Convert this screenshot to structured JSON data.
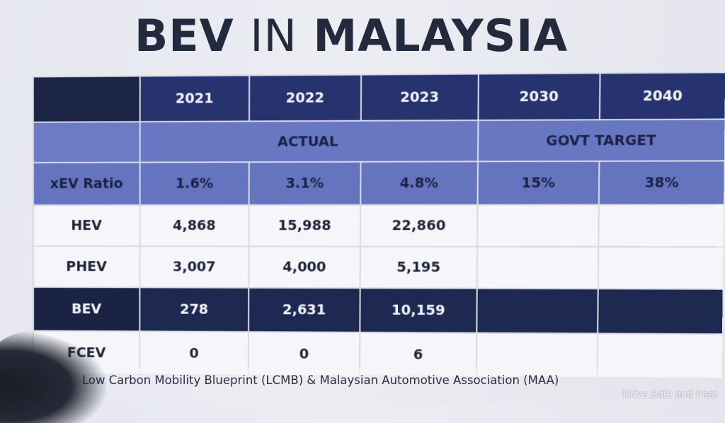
{
  "title": {
    "part1": "BEV",
    "part2": "IN",
    "part3": "MALAYSIA"
  },
  "table": {
    "years": [
      "2021",
      "2022",
      "2023",
      "2030",
      "2040"
    ],
    "actual_label": "ACTUAL",
    "target_label": "GOVT TARGET",
    "ratio": {
      "label": "xEV Ratio",
      "values": [
        "1.6%",
        "3.1%",
        "4.8%",
        "15%",
        "38%"
      ]
    },
    "rows": [
      {
        "label": "HEV",
        "values": [
          "4,868",
          "15,988",
          "22,860",
          "",
          ""
        ]
      },
      {
        "label": "PHEV",
        "values": [
          "3,007",
          "4,000",
          "5,195",
          "",
          ""
        ]
      },
      {
        "label": "BEV",
        "values": [
          "278",
          "2,631",
          "10,159",
          "",
          ""
        ]
      },
      {
        "label": "FCEV",
        "values": [
          "0",
          "0",
          "6",
          "",
          ""
        ]
      }
    ]
  },
  "footnote": "Low Carbon Mobility Blueprint (LCMB) & Malaysian Automotive Association (MAA)",
  "watermark": "Drive Safe and Fast"
}
